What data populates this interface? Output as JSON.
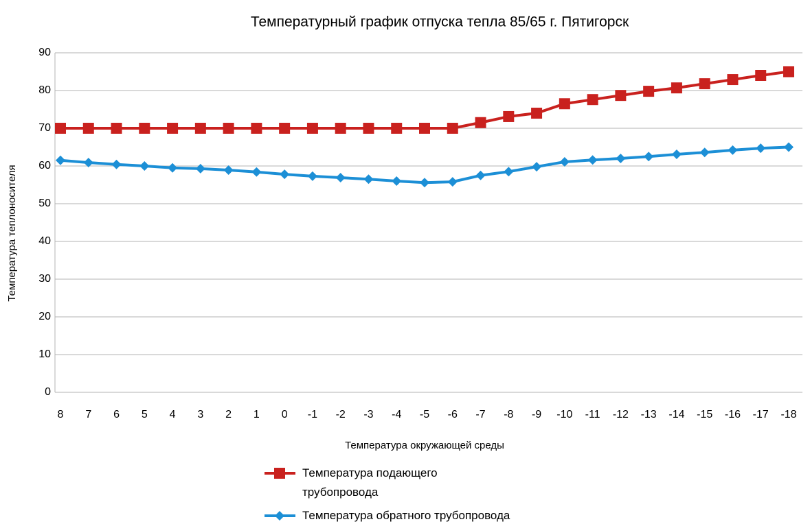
{
  "chart_data": {
    "type": "line",
    "title": "Температурный график отпуска тепла 85/65 г. Пятигорск",
    "x_label": "Температура окружающей среды",
    "y_label": "Температура теплоносителя",
    "categories": [
      "8",
      "7",
      "6",
      "5",
      "4",
      "3",
      "2",
      "1",
      "0",
      "-1",
      "-2",
      "-3",
      "-4",
      "-5",
      "-6",
      "-7",
      "-8",
      "-9",
      "-10",
      "-11",
      "-12",
      "-13",
      "-14",
      "-15",
      "-16",
      "-17",
      "-18"
    ],
    "series": [
      {
        "name": "Температура подающего трубопровода",
        "color": "#c9211e",
        "marker": "square",
        "values": [
          70,
          70,
          70,
          70,
          70,
          70,
          70,
          70,
          70,
          70,
          70,
          70,
          70,
          70,
          70,
          71.5,
          73.1,
          74,
          76.5,
          77.6,
          78.7,
          79.8,
          80.7,
          81.8,
          82.9,
          84,
          85
        ]
      },
      {
        "name": "Температура обратного трубопровода",
        "color": "#1c8fd6",
        "marker": "diamond",
        "values": [
          61.5,
          60.9,
          60.4,
          60,
          59.5,
          59.3,
          58.9,
          58.4,
          57.8,
          57.3,
          56.9,
          56.5,
          56,
          55.6,
          55.8,
          57.5,
          58.5,
          59.8,
          61.1,
          61.6,
          62,
          62.5,
          63.1,
          63.6,
          64.2,
          64.7,
          65
        ]
      }
    ],
    "ylim": [
      0,
      90
    ],
    "yticks": [
      0,
      10,
      20,
      30,
      40,
      50,
      60,
      70,
      80,
      90
    ],
    "grid": true,
    "legend": "bottom"
  }
}
